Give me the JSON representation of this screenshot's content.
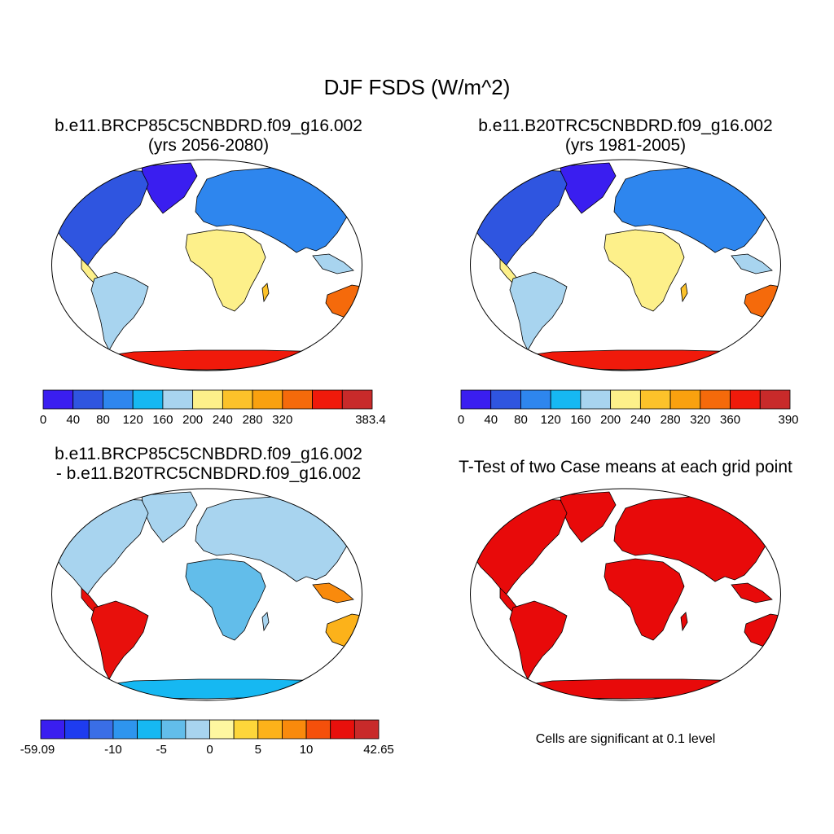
{
  "figure": {
    "title": "DJF FSDS (W/m^2)"
  },
  "panels": [
    {
      "title_line1": "b.e11.BRCP85C5CNBDRD.f09_g16.002",
      "title_line2": "(yrs 2056-2080)",
      "colorbar": {
        "colors": [
          "#3a1ef0",
          "#2f55e0",
          "#2e86ee",
          "#16b8f2",
          "#a8d4ef",
          "#fdf08a",
          "#fcc22a",
          "#f9a10f",
          "#f56a0b",
          "#f01a0b",
          "#c82a2a"
        ],
        "labels": [
          "0",
          "40",
          "80",
          "120",
          "160",
          "200",
          "240",
          "280",
          "320",
          "383.4"
        ]
      }
    },
    {
      "title_line1": "b.e11.B20TRC5CNBDRD.f09_g16.002",
      "title_line2": "(yrs 1981-2005)",
      "colorbar": {
        "colors": [
          "#3a1ef0",
          "#2f55e0",
          "#2e86ee",
          "#16b8f2",
          "#a8d4ef",
          "#fdf08a",
          "#fcc22a",
          "#f9a10f",
          "#f56a0b",
          "#f01a0b",
          "#c82a2a"
        ],
        "labels": [
          "0",
          "40",
          "80",
          "120",
          "160",
          "200",
          "240",
          "280",
          "320",
          "360",
          "390"
        ]
      }
    },
    {
      "title_line1": "b.e11.BRCP85C5CNBDRD.f09_g16.002",
      "title_line2": "- b.e11.B20TRC5CNBDRD.f09_g16.002",
      "colorbar": {
        "colors": [
          "#3a1ef0",
          "#1e3cf0",
          "#3a6ee6",
          "#2e95ee",
          "#16b8f2",
          "#62bdea",
          "#a8d4ef",
          "#fef7a0",
          "#fdd63a",
          "#fcb21a",
          "#f98a0c",
          "#f5500b",
          "#e8100c",
          "#c82a2a"
        ],
        "labels": [
          "-59.09",
          "-10",
          "-5",
          "0",
          "5",
          "10",
          "42.65"
        ]
      }
    },
    {
      "title_line1": "T-Test of two Case means at each grid point",
      "note": "Cells are significant at 0.1 level",
      "significance_color": "#e80a0a"
    }
  ]
}
